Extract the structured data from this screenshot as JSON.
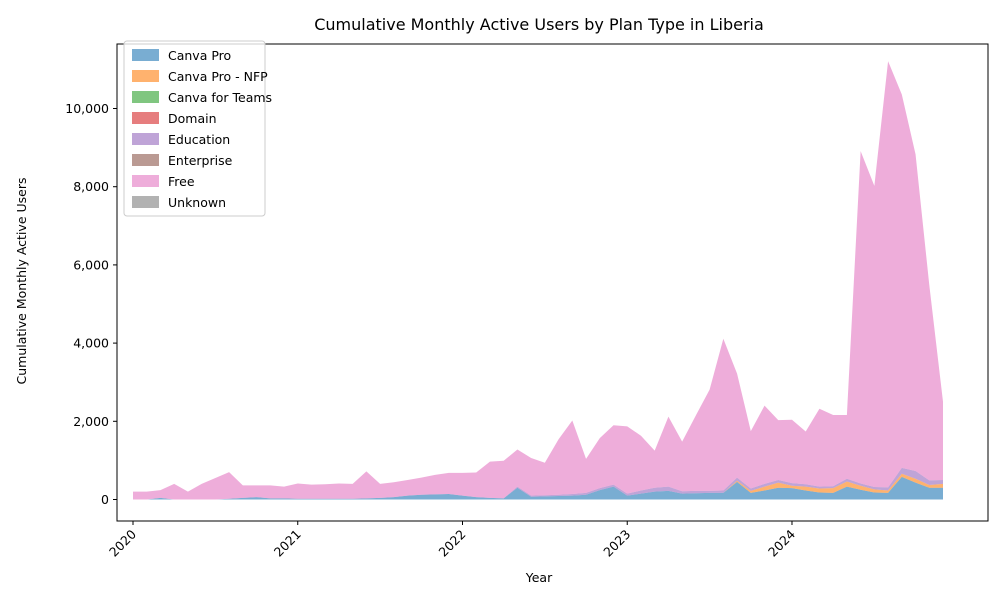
{
  "chart_data": {
    "type": "area",
    "stacked": true,
    "title": "Cumulative Monthly Active Users by Plan Type in Liberia",
    "xlabel": "Year",
    "ylabel": "Cumulative Monthly Active Users",
    "x_start": "2020-01",
    "x_end": "2024-12",
    "x_ticks": [
      {
        "date": "2020-01",
        "label": "2020"
      },
      {
        "date": "2021-01",
        "label": "2021"
      },
      {
        "date": "2022-01",
        "label": "2022"
      },
      {
        "date": "2023-01",
        "label": "2023"
      },
      {
        "date": "2024-01",
        "label": "2024"
      }
    ],
    "ylim": [
      -550,
      11650
    ],
    "y_ticks": [
      0,
      2000,
      4000,
      6000,
      8000,
      10000
    ],
    "y_tick_labels": [
      "0",
      "2,000",
      "4,000",
      "6,000",
      "8,000",
      "10,000"
    ],
    "grid": false,
    "legend_position": "top-left",
    "x": [
      "2020-01",
      "2020-02",
      "2020-03",
      "2020-04",
      "2020-05",
      "2020-06",
      "2020-07",
      "2020-08",
      "2020-09",
      "2020-10",
      "2020-11",
      "2020-12",
      "2021-01",
      "2021-02",
      "2021-03",
      "2021-04",
      "2021-05",
      "2021-06",
      "2021-07",
      "2021-08",
      "2021-09",
      "2021-10",
      "2021-11",
      "2021-12",
      "2022-01",
      "2022-02",
      "2022-03",
      "2022-04",
      "2022-05",
      "2022-06",
      "2022-07",
      "2022-08",
      "2022-09",
      "2022-10",
      "2022-11",
      "2022-12",
      "2023-01",
      "2023-02",
      "2023-03",
      "2023-04",
      "2023-05",
      "2023-06",
      "2023-07",
      "2023-08",
      "2023-09",
      "2023-10",
      "2023-11",
      "2023-12",
      "2024-01",
      "2024-02",
      "2024-03",
      "2024-04",
      "2024-05",
      "2024-06",
      "2024-07",
      "2024-08",
      "2024-09",
      "2024-10",
      "2024-11",
      "2024-12"
    ],
    "series": [
      {
        "name": "Canva Pro",
        "color": "#1f77b4",
        "values": [
          0,
          0,
          40,
          0,
          0,
          0,
          0,
          20,
          40,
          60,
          30,
          30,
          20,
          20,
          20,
          20,
          20,
          30,
          40,
          60,
          100,
          120,
          130,
          140,
          100,
          60,
          40,
          30,
          300,
          70,
          80,
          90,
          100,
          120,
          240,
          330,
          100,
          150,
          200,
          220,
          150,
          160,
          170,
          170,
          450,
          170,
          230,
          300,
          290,
          230,
          180,
          170,
          330,
          250,
          180,
          170,
          580,
          430,
          300,
          300
        ]
      },
      {
        "name": "Canva Pro - NFP",
        "color": "#ff7f0e",
        "values": [
          0,
          0,
          0,
          0,
          0,
          0,
          0,
          0,
          0,
          0,
          0,
          0,
          0,
          0,
          0,
          0,
          0,
          0,
          0,
          0,
          0,
          0,
          0,
          0,
          0,
          0,
          0,
          0,
          0,
          0,
          0,
          0,
          0,
          0,
          0,
          0,
          0,
          0,
          0,
          0,
          0,
          0,
          0,
          0,
          30,
          50,
          100,
          130,
          60,
          100,
          100,
          120,
          130,
          100,
          80,
          60,
          80,
          100,
          70,
          100
        ]
      },
      {
        "name": "Canva for Teams",
        "color": "#2ca02c",
        "values": [
          0,
          0,
          0,
          0,
          0,
          0,
          0,
          0,
          0,
          0,
          0,
          0,
          0,
          0,
          0,
          0,
          0,
          0,
          0,
          0,
          0,
          0,
          0,
          0,
          0,
          0,
          0,
          0,
          0,
          0,
          0,
          0,
          0,
          0,
          0,
          0,
          0,
          0,
          0,
          0,
          0,
          0,
          0,
          0,
          0,
          0,
          0,
          0,
          0,
          0,
          0,
          0,
          0,
          0,
          0,
          0,
          0,
          0,
          0,
          0
        ]
      },
      {
        "name": "Domain",
        "color": "#d62728",
        "values": [
          0,
          0,
          0,
          0,
          0,
          0,
          0,
          0,
          0,
          0,
          0,
          0,
          0,
          0,
          0,
          0,
          0,
          0,
          0,
          0,
          0,
          0,
          0,
          0,
          0,
          0,
          0,
          0,
          0,
          0,
          0,
          0,
          0,
          0,
          0,
          0,
          0,
          0,
          0,
          0,
          0,
          0,
          0,
          0,
          0,
          0,
          0,
          0,
          0,
          0,
          0,
          0,
          0,
          0,
          0,
          0,
          0,
          0,
          0,
          0
        ]
      },
      {
        "name": "Education",
        "color": "#9467bd",
        "values": [
          0,
          0,
          0,
          0,
          0,
          0,
          0,
          0,
          0,
          0,
          0,
          0,
          0,
          0,
          0,
          0,
          0,
          0,
          0,
          0,
          0,
          0,
          0,
          0,
          0,
          0,
          0,
          0,
          30,
          30,
          30,
          30,
          40,
          50,
          50,
          50,
          50,
          80,
          100,
          110,
          60,
          60,
          50,
          60,
          80,
          60,
          70,
          70,
          70,
          60,
          50,
          50,
          70,
          60,
          60,
          80,
          150,
          200,
          120,
          100
        ]
      },
      {
        "name": "Enterprise",
        "color": "#8c564b",
        "values": [
          0,
          0,
          0,
          0,
          0,
          0,
          0,
          0,
          0,
          0,
          0,
          0,
          0,
          0,
          0,
          0,
          0,
          0,
          0,
          0,
          0,
          0,
          0,
          0,
          0,
          0,
          0,
          0,
          0,
          0,
          0,
          0,
          0,
          0,
          0,
          0,
          0,
          0,
          0,
          0,
          0,
          0,
          0,
          0,
          0,
          0,
          0,
          0,
          0,
          0,
          0,
          0,
          0,
          0,
          0,
          0,
          0,
          0,
          0,
          0
        ]
      },
      {
        "name": "Free",
        "color": "#e377c2",
        "values": [
          200,
          200,
          200,
          400,
          200,
          400,
          550,
          680,
          320,
          300,
          330,
          300,
          390,
          360,
          370,
          390,
          380,
          690,
          360,
          380,
          400,
          440,
          500,
          540,
          580,
          630,
          930,
          960,
          950,
          960,
          830,
          1420,
          1880,
          870,
          1280,
          1520,
          1720,
          1400,
          950,
          1790,
          1270,
          1930,
          2590,
          3880,
          2660,
          1470,
          2000,
          1530,
          1620,
          1350,
          1990,
          1820,
          1630,
          8500,
          7700,
          10900,
          9550,
          8100,
          5000,
          2000
        ]
      },
      {
        "name": "Unknown",
        "color": "#7f7f7f",
        "values": [
          0,
          0,
          0,
          0,
          0,
          0,
          0,
          0,
          0,
          0,
          0,
          0,
          0,
          0,
          0,
          0,
          0,
          0,
          0,
          0,
          0,
          0,
          0,
          0,
          0,
          0,
          0,
          0,
          0,
          0,
          0,
          0,
          0,
          0,
          0,
          0,
          0,
          0,
          0,
          0,
          0,
          0,
          0,
          0,
          0,
          0,
          0,
          0,
          0,
          0,
          0,
          0,
          0,
          0,
          0,
          0,
          0,
          0,
          0,
          0
        ]
      }
    ]
  }
}
